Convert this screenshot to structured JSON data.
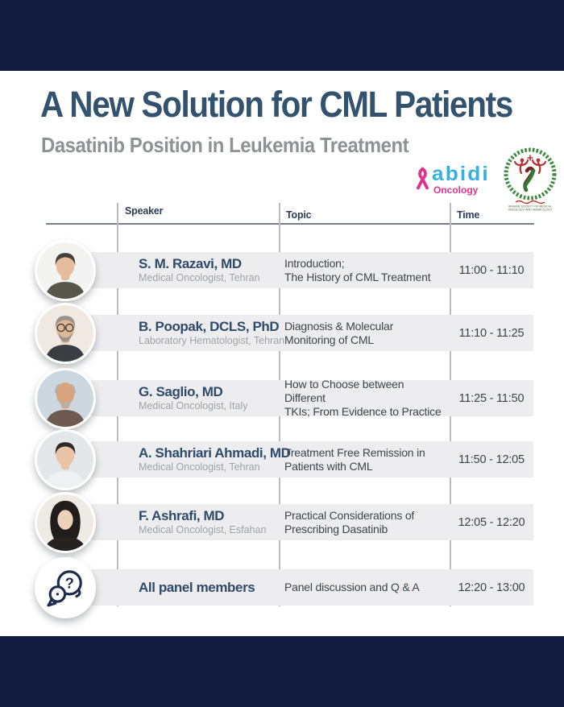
{
  "poster": {
    "title": "A New Solution for CML Patients",
    "subtitle": "Dasatinib Position in Leukemia Treatment"
  },
  "logos": {
    "abidi": {
      "wordmark": "abidi",
      "division": "Oncology",
      "ribbon_icon": "pink-awareness-ribbon-icon",
      "blue": "#35b0e0",
      "pink": "#e0328c"
    },
    "society": {
      "wreath_icon": "green-laurel-wreath-icon",
      "figures_icon": "red-dancing-figures-icon",
      "ribbon_icon": "green-red-awareness-ribbon-icon",
      "line1": "IRANIAN SOCIETY OF MEDICAL",
      "line2": "ONCOLOGY AND HEMATOLOGY",
      "green": "#3e8b40",
      "red": "#b8332f"
    }
  },
  "colors": {
    "navy_bar": "#121c41",
    "title": "#33526e",
    "subtitle": "#8e9195",
    "row_band": "#ededef",
    "name": "#2e4b6b",
    "muted_role": "#9fa3a8",
    "body_text": "#3d454d",
    "divider": "#b9bbbe"
  },
  "table": {
    "headers": {
      "speaker": "Speaker",
      "topic": "Topic",
      "time": "Time"
    },
    "rows": [
      {
        "speaker": "S. M. Razavi, MD",
        "role": "Medical Oncologist, Tehran",
        "topic": "Introduction;\nThe History of CML Treatment",
        "time": "11:00 - 11:10",
        "avatar": {
          "kind": "photo",
          "icon": "speaker-photo",
          "style": "short",
          "skin": "#e5bd9e",
          "hair": "#46403a",
          "top": "#56564a",
          "bg": "#f3f3f1",
          "glasses": false,
          "beard": ""
        }
      },
      {
        "speaker": "B. Poopak, DCLS, PhD",
        "role": "Laboratory Hematologist, Tehran",
        "topic": "Diagnosis & Molecular\nMonitoring of CML",
        "time": "11:10 - 11:25",
        "avatar": {
          "kind": "photo",
          "icon": "speaker-photo",
          "style": "short",
          "skin": "#e0b896",
          "hair": "#9a948c",
          "top": "#3a3d42",
          "bg": "#efe9e1",
          "glasses": true,
          "beard": "#9a948c"
        }
      },
      {
        "speaker": "G. Saglio, MD",
        "role": "Medical Oncologist, Italy",
        "topic": "How to Choose between Different\nTKIs; From Evidence to Practice",
        "time": "11:25 - 11:50",
        "avatar": {
          "kind": "photo",
          "icon": "speaker-photo",
          "style": "bald",
          "skin": "#d8a47e",
          "hair": "#b5b1aa",
          "top": "#6e5a50",
          "bg": "#ccd7e0",
          "glasses": false,
          "beard": "#b5b1aa"
        }
      },
      {
        "speaker": "A. Shahriari Ahmadi, MD",
        "role": "Medical Oncologist, Tehran",
        "topic": "Treatment Free Remission in\nPatients with CML",
        "time": "11:50 - 12:05",
        "avatar": {
          "kind": "photo",
          "icon": "speaker-photo",
          "style": "short",
          "skin": "#e8c3a6",
          "hair": "#2e2a28",
          "top": "#eef0f2",
          "bg": "#e4e7ea",
          "glasses": false,
          "beard": ""
        }
      },
      {
        "speaker": "F. Ashrafi, MD",
        "role": "Medical Oncologist, Esfahan",
        "topic": "Practical Considerations of\nPrescribing Dasatinib",
        "time": "12:05 - 12:20",
        "avatar": {
          "kind": "photo",
          "icon": "speaker-photo",
          "style": "hijab",
          "skin": "#ecd2bb",
          "hair": "#201d1c",
          "top": "#262222",
          "bg": "#efeae4",
          "glasses": false,
          "beard": ""
        }
      },
      {
        "speaker": "All panel members",
        "role": "",
        "topic": "Panel discussion and Q & A",
        "time": "12:20 - 13:00",
        "avatar": {
          "kind": "qa",
          "icon": "qa-speech-bubbles-icon"
        }
      }
    ]
  }
}
